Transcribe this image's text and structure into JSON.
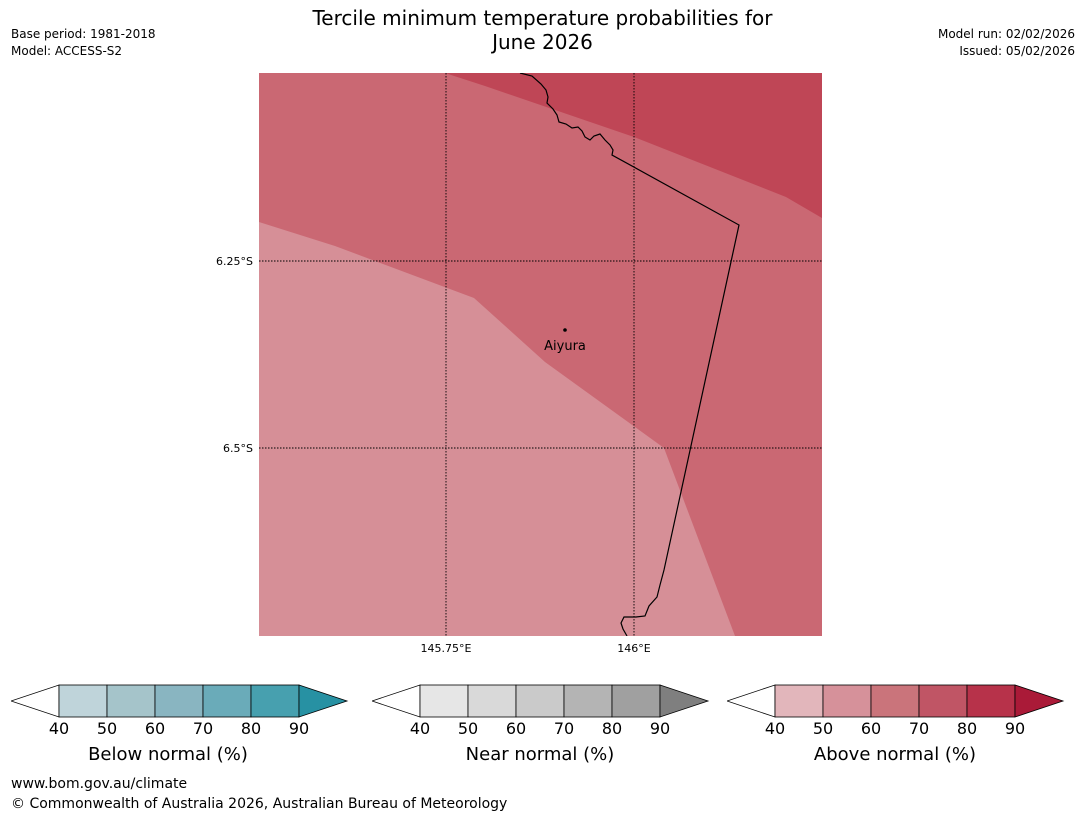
{
  "header": {
    "title_line1": "Tercile minimum temperature probabilities for",
    "title_line2": "June 2026",
    "base_period": "Base period: 1981-2018",
    "model": "Model: ACCESS-S2",
    "model_run": "Model run: 02/02/2026",
    "issued": "Issued: 05/02/2026"
  },
  "map": {
    "lat_labels": [
      "6.25°S",
      "6.5°S"
    ],
    "lon_labels": [
      "145.75°E",
      "146°E"
    ],
    "place_label": "Aiyura",
    "fill_colors": {
      "band_50_60": "#d68f97",
      "band_60_70": "#ca6873",
      "band_70_80": "#bf4656"
    }
  },
  "colorbars": [
    {
      "label": "Below normal (%)",
      "ticks": [
        "40",
        "50",
        "60",
        "70",
        "80",
        "90"
      ],
      "colors": [
        "#bfd4da",
        "#a5c4ca",
        "#89b5c1",
        "#6aabb9",
        "#47a0af",
        "#2791a3"
      ]
    },
    {
      "label": "Near normal (%)",
      "ticks": [
        "40",
        "50",
        "60",
        "70",
        "80",
        "90"
      ],
      "colors": [
        "#e6e6e6",
        "#d9d9d9",
        "#cacaca",
        "#b4b4b4",
        "#a0a0a0",
        "#7f7f7f"
      ]
    },
    {
      "label": "Above normal (%)",
      "ticks": [
        "40",
        "50",
        "60",
        "70",
        "80",
        "90"
      ],
      "colors": [
        "#e2b6bb",
        "#d6919a",
        "#ca747b",
        "#c05565",
        "#b7324a",
        "#aa1a38"
      ]
    }
  ],
  "footer": {
    "url": "www.bom.gov.au/climate",
    "copyright": "© Commonwealth of Australia 2026, Australian Bureau of Meteorology"
  }
}
